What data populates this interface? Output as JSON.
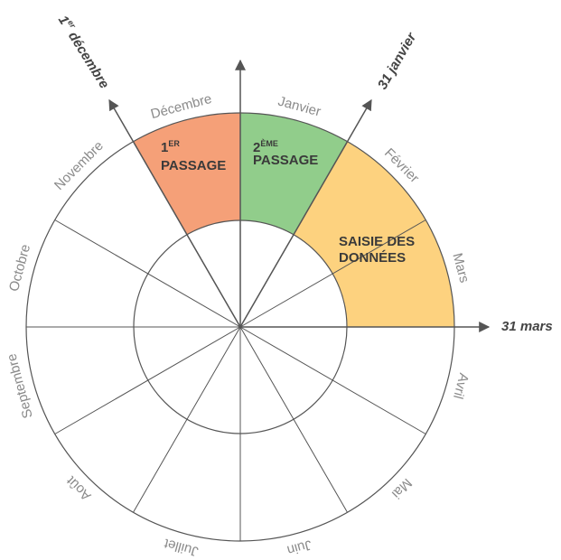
{
  "months": [
    "Janvier",
    "Février",
    "Mars",
    "Avril",
    "Mai",
    "Juin",
    "Juillet",
    "Août",
    "Septembre",
    "Octobre",
    "Novembre",
    "Décembre"
  ],
  "phases": [
    {
      "number": "1",
      "suffix": "ER",
      "label": "PASSAGE"
    },
    {
      "number": "2",
      "suffix": "ÈME",
      "label": "PASSAGE"
    },
    {
      "line1": "SAISIE DES",
      "line2": "DONNÉES"
    }
  ],
  "markers": [
    {
      "number": "1",
      "suffix": "er",
      "label": " décembre"
    },
    {
      "label": "31 janvier"
    },
    {
      "label": "31 mars"
    }
  ]
}
